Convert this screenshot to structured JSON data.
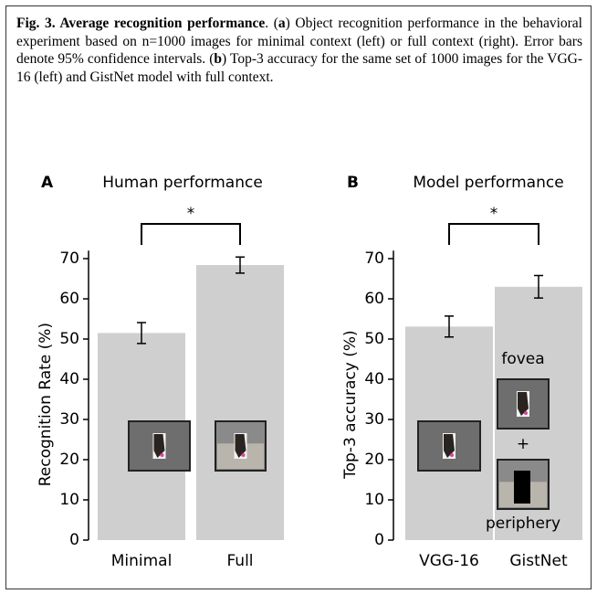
{
  "caption": [
    {
      "text": "Fig. 3. Average recognition performance",
      "bold": true
    },
    {
      "text": ". ("
    },
    {
      "text": "a",
      "bold": true
    },
    {
      "text": ") Object recognition performance in the behavioral experiment based on n=1000 images for minimal context (left) or full context (right). Error bars denote 95% confidence intervals. ("
    },
    {
      "text": "b",
      "bold": true
    },
    {
      "text": ") Top-3 accuracy for the same set of 1000 images for the VGG-16 (left) and GistNet model with full context."
    }
  ],
  "chart_data": [
    {
      "type": "bar",
      "panel": "A",
      "title": "Human performance",
      "y_label": "Recognition Rate (%)",
      "categories": [
        "Minimal",
        "Full"
      ],
      "values": [
        51.5,
        68.4
      ],
      "errors": [
        2.6,
        2.0
      ],
      "color": "#cfcfcf",
      "ylim": [
        0,
        72
      ],
      "yticks": [
        0,
        10,
        20,
        30,
        40,
        50,
        60,
        70
      ],
      "significance": "*"
    },
    {
      "type": "bar",
      "panel": "B",
      "title": "Model performance",
      "y_label": "Top-3 accuracy (%)",
      "categories": [
        "VGG-16",
        "GistNet"
      ],
      "values": [
        53.1,
        63.0
      ],
      "errors": [
        2.6,
        2.8
      ],
      "color": "#cfcfcf",
      "ylim": [
        0,
        72
      ],
      "yticks": [
        0,
        10,
        20,
        30,
        40,
        50,
        60,
        70
      ],
      "significance": "*",
      "annotations": [
        "fovea",
        "+",
        "periphery"
      ]
    }
  ]
}
